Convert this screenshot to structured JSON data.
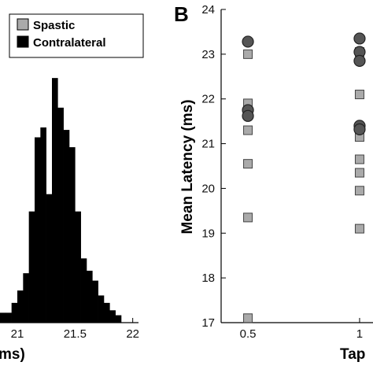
{
  "chart_data": [
    {
      "type": "bar",
      "panel": "",
      "xlabel": "ms)",
      "ylabel": "",
      "x_ticks": [
        21,
        21.5,
        22
      ],
      "xlim": [
        20.85,
        22.05
      ],
      "ylim": [
        0,
        1
      ],
      "bin_edges": [
        20.85,
        20.9,
        20.95,
        21.0,
        21.05,
        21.1,
        21.15,
        21.2,
        21.25,
        21.3,
        21.35,
        21.4,
        21.45,
        21.5,
        21.55,
        21.6,
        21.65,
        21.7,
        21.75,
        21.8,
        21.85,
        21.9,
        21.95,
        22.0
      ],
      "series": [
        {
          "name": "Spastic",
          "color": "#aaaaaa",
          "values": [
            0,
            0,
            0,
            0,
            0,
            0,
            0,
            0,
            0,
            0,
            0,
            0,
            0,
            0,
            0,
            0,
            0,
            0,
            0,
            0,
            0,
            0,
            0
          ]
        },
        {
          "name": "Contralateral",
          "color": "#000000",
          "values": [
            0.04,
            0.04,
            0.08,
            0.13,
            0.2,
            0.45,
            0.75,
            0.79,
            0.52,
            0.99,
            0.87,
            0.78,
            0.71,
            0.45,
            0.26,
            0.21,
            0.17,
            0.11,
            0.08,
            0.05,
            0.03,
            0.0,
            0.0
          ]
        }
      ],
      "legend": "top-right"
    },
    {
      "type": "scatter",
      "panel": "B",
      "xlabel": "Tap",
      "ylabel": "Mean Latency (ms)",
      "x_ticks": [
        0.5,
        1
      ],
      "y_ticks": [
        17,
        18,
        19,
        20,
        21,
        22,
        23,
        24
      ],
      "xlim": [
        0.38,
        1.06
      ],
      "ylim": [
        17,
        24
      ],
      "series": [
        {
          "name": "Spastic",
          "marker": "square",
          "color": "#aaaaaa",
          "x": [
            0.5,
            0.5,
            0.5,
            0.5,
            0.5,
            0.5,
            0.5,
            1,
            1,
            1,
            1,
            1,
            1,
            1
          ],
          "y": [
            21.9,
            21.7,
            21.3,
            20.55,
            19.35,
            17.1,
            23.0,
            22.1,
            21.15,
            20.65,
            20.35,
            19.95,
            19.1,
            23.05
          ]
        },
        {
          "name": "Contralateral",
          "marker": "circle",
          "color": "#555555",
          "x": [
            0.5,
            0.5,
            0.5,
            1,
            1,
            1,
            1,
            1
          ],
          "y": [
            23.28,
            21.75,
            21.62,
            23.35,
            23.05,
            22.85,
            21.4,
            21.32
          ]
        }
      ]
    }
  ]
}
